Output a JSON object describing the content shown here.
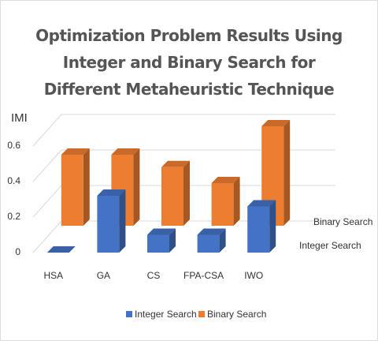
{
  "chart_data": {
    "type": "bar3d",
    "title": "Optimization Problem Results Using Integer and Binary Search for Different Metaheuristic Technique",
    "y_label": "IMI",
    "categories": [
      "HSA",
      "GA",
      "CS",
      "FPA-CSA",
      "IWO"
    ],
    "series": [
      {
        "name": "Integer Search",
        "color": "#4472c4",
        "values": [
          0,
          0.32,
          0.1,
          0.1,
          0.26
        ]
      },
      {
        "name": "Binary Search",
        "color": "#ed7d31",
        "values": [
          0.4,
          0.4,
          0.33,
          0.24,
          0.56
        ]
      }
    ],
    "ylim": [
      0,
      0.8
    ],
    "yticks": [
      0,
      0.2,
      0.4,
      0.6
    ],
    "grid": true,
    "legend": "bottom"
  }
}
